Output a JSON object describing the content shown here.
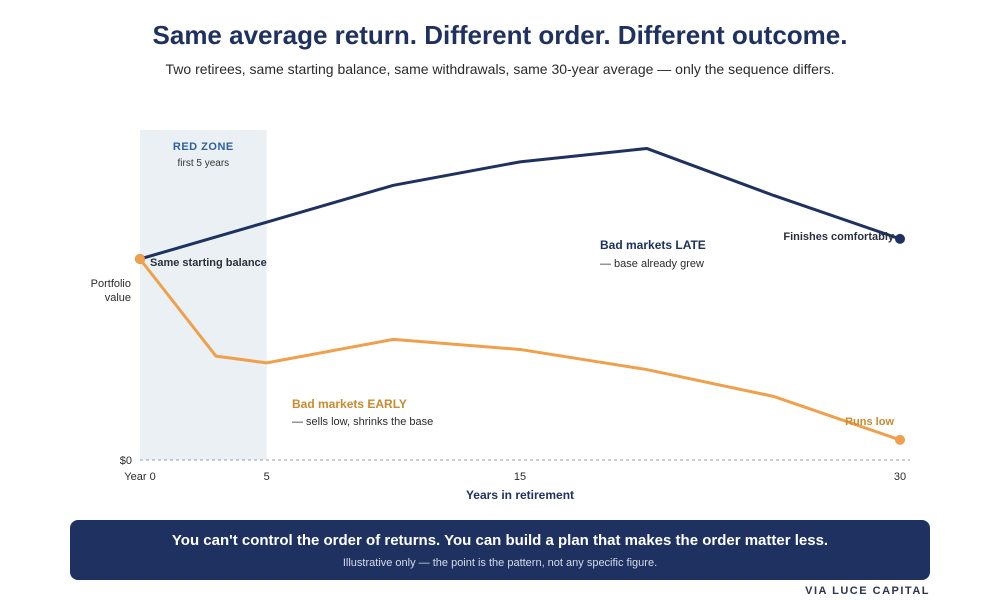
{
  "header": {
    "title": "Same average return. Different order. Different outcome.",
    "subtitle": "Two retirees, same starting balance, same withdrawals, same 30-year average — only the sequence differs."
  },
  "chart_data": {
    "type": "line",
    "xlabel": "Years in retirement",
    "ylabel": "Portfolio value",
    "xlim": [
      0,
      30
    ],
    "ylim": [
      0,
      100
    ],
    "x_ticks": [
      {
        "value": 0,
        "label": "Year 0"
      },
      {
        "value": 5,
        "label": "5"
      },
      {
        "value": 15,
        "label": "15"
      },
      {
        "value": 30,
        "label": "30"
      }
    ],
    "y_ticks": [
      {
        "value": 0,
        "label": "$0"
      }
    ],
    "shaded_region": {
      "x_start": 0,
      "x_end": 5,
      "label": "RED ZONE",
      "sublabel": "first 5 years"
    },
    "series": [
      {
        "name": "Bad markets LATE",
        "color": "#1e3160",
        "x": [
          0,
          5,
          10,
          15,
          20,
          25,
          30
        ],
        "y": [
          60,
          71,
          82,
          89,
          93,
          79,
          66
        ]
      },
      {
        "name": "Bad markets EARLY",
        "color": "#f0a04b",
        "x": [
          0,
          3,
          5,
          10,
          15,
          20,
          25,
          30
        ],
        "y": [
          60,
          31,
          29,
          36,
          33,
          27,
          19,
          6
        ]
      }
    ],
    "annotations": {
      "start": "Same starting balance",
      "late_label": "Bad markets LATE",
      "late_sub": "— base already grew",
      "late_end": "Finishes comfortably",
      "early_label": "Bad markets EARLY",
      "early_sub": "— sells low, shrinks the base",
      "early_end": "Runs low"
    },
    "grid": false
  },
  "banner": {
    "headline": "You can't control the order of returns. You can build a plan that makes the order matter less.",
    "note": "Illustrative only — the point is the pattern, not any specific figure."
  },
  "credit": "VIA LUCE CAPITAL",
  "colors": {
    "navy": "#1e3160",
    "orange": "#f0a04b",
    "orange_text": "#c98a2e",
    "zone_fill": "#eaf0f4",
    "zone_text": "#2f5f9e"
  }
}
